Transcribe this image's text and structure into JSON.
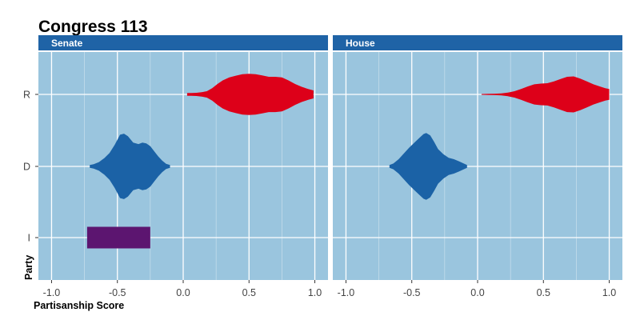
{
  "chart_data": {
    "type": "violin",
    "title": "Congress 113",
    "xlabel": "Partisanship Score",
    "ylabel": "Party",
    "xlim": [
      -1.1,
      1.1
    ],
    "x_ticks": [
      -1.0,
      -0.5,
      0.0,
      0.5,
      1.0
    ],
    "x_tick_labels": [
      "-1.0",
      "-0.5",
      "0.0",
      "0.5",
      "1.0"
    ],
    "categories": [
      "R",
      "D",
      "I"
    ],
    "grid": true,
    "colors": {
      "panel_bg": "#9ac5de",
      "strip_bg": "#1f63a6",
      "grid": "#ffffff",
      "R": "#dd0019",
      "D": "#1b62a6",
      "I": "#5c1570"
    },
    "facets": [
      {
        "name": "Senate",
        "violins": [
          {
            "party": "R",
            "profile": [
              [
                0.03,
                0.04
              ],
              [
                0.06,
                0.04
              ],
              [
                0.1,
                0.045
              ],
              [
                0.14,
                0.06
              ],
              [
                0.18,
                0.09
              ],
              [
                0.22,
                0.17
              ],
              [
                0.26,
                0.29
              ],
              [
                0.3,
                0.39
              ],
              [
                0.35,
                0.47
              ],
              [
                0.4,
                0.52
              ],
              [
                0.45,
                0.56
              ],
              [
                0.5,
                0.57
              ],
              [
                0.55,
                0.56
              ],
              [
                0.6,
                0.53
              ],
              [
                0.65,
                0.49
              ],
              [
                0.7,
                0.49
              ],
              [
                0.75,
                0.47
              ],
              [
                0.8,
                0.39
              ],
              [
                0.85,
                0.29
              ],
              [
                0.9,
                0.21
              ],
              [
                0.95,
                0.15
              ],
              [
                0.99,
                0.11
              ]
            ]
          },
          {
            "party": "D",
            "profile": [
              [
                -0.71,
                0.04
              ],
              [
                -0.68,
                0.06
              ],
              [
                -0.64,
                0.12
              ],
              [
                -0.6,
                0.23
              ],
              [
                -0.56,
                0.37
              ],
              [
                -0.52,
                0.6
              ],
              [
                -0.48,
                0.88
              ],
              [
                -0.45,
                0.91
              ],
              [
                -0.42,
                0.84
              ],
              [
                -0.38,
                0.66
              ],
              [
                -0.34,
                0.62
              ],
              [
                -0.31,
                0.66
              ],
              [
                -0.28,
                0.64
              ],
              [
                -0.25,
                0.56
              ],
              [
                -0.22,
                0.42
              ],
              [
                -0.19,
                0.28
              ],
              [
                -0.16,
                0.16
              ],
              [
                -0.13,
                0.07
              ],
              [
                -0.1,
                0.04
              ]
            ]
          },
          {
            "party": "I",
            "range": [
              -0.73,
              -0.25
            ],
            "halfwidth": 0.3
          }
        ]
      },
      {
        "name": "House",
        "violins": [
          {
            "party": "R",
            "profile": [
              [
                0.03,
                0.01
              ],
              [
                0.08,
                0.015
              ],
              [
                0.13,
                0.02
              ],
              [
                0.18,
                0.03
              ],
              [
                0.23,
                0.05
              ],
              [
                0.28,
                0.09
              ],
              [
                0.33,
                0.15
              ],
              [
                0.38,
                0.22
              ],
              [
                0.43,
                0.28
              ],
              [
                0.48,
                0.3
              ],
              [
                0.53,
                0.31
              ],
              [
                0.58,
                0.36
              ],
              [
                0.63,
                0.43
              ],
              [
                0.68,
                0.49
              ],
              [
                0.73,
                0.5
              ],
              [
                0.78,
                0.44
              ],
              [
                0.83,
                0.36
              ],
              [
                0.88,
                0.28
              ],
              [
                0.93,
                0.22
              ],
              [
                0.97,
                0.17
              ],
              [
                1.0,
                0.15
              ]
            ]
          },
          {
            "party": "D",
            "profile": [
              [
                -0.67,
                0.04
              ],
              [
                -0.64,
                0.08
              ],
              [
                -0.6,
                0.2
              ],
              [
                -0.56,
                0.36
              ],
              [
                -0.52,
                0.52
              ],
              [
                -0.48,
                0.66
              ],
              [
                -0.44,
                0.8
              ],
              [
                -0.41,
                0.9
              ],
              [
                -0.39,
                0.93
              ],
              [
                -0.36,
                0.86
              ],
              [
                -0.33,
                0.68
              ],
              [
                -0.3,
                0.48
              ],
              [
                -0.26,
                0.34
              ],
              [
                -0.22,
                0.24
              ],
              [
                -0.18,
                0.2
              ],
              [
                -0.14,
                0.14
              ],
              [
                -0.1,
                0.07
              ],
              [
                -0.08,
                0.04
              ]
            ]
          }
        ]
      }
    ]
  }
}
